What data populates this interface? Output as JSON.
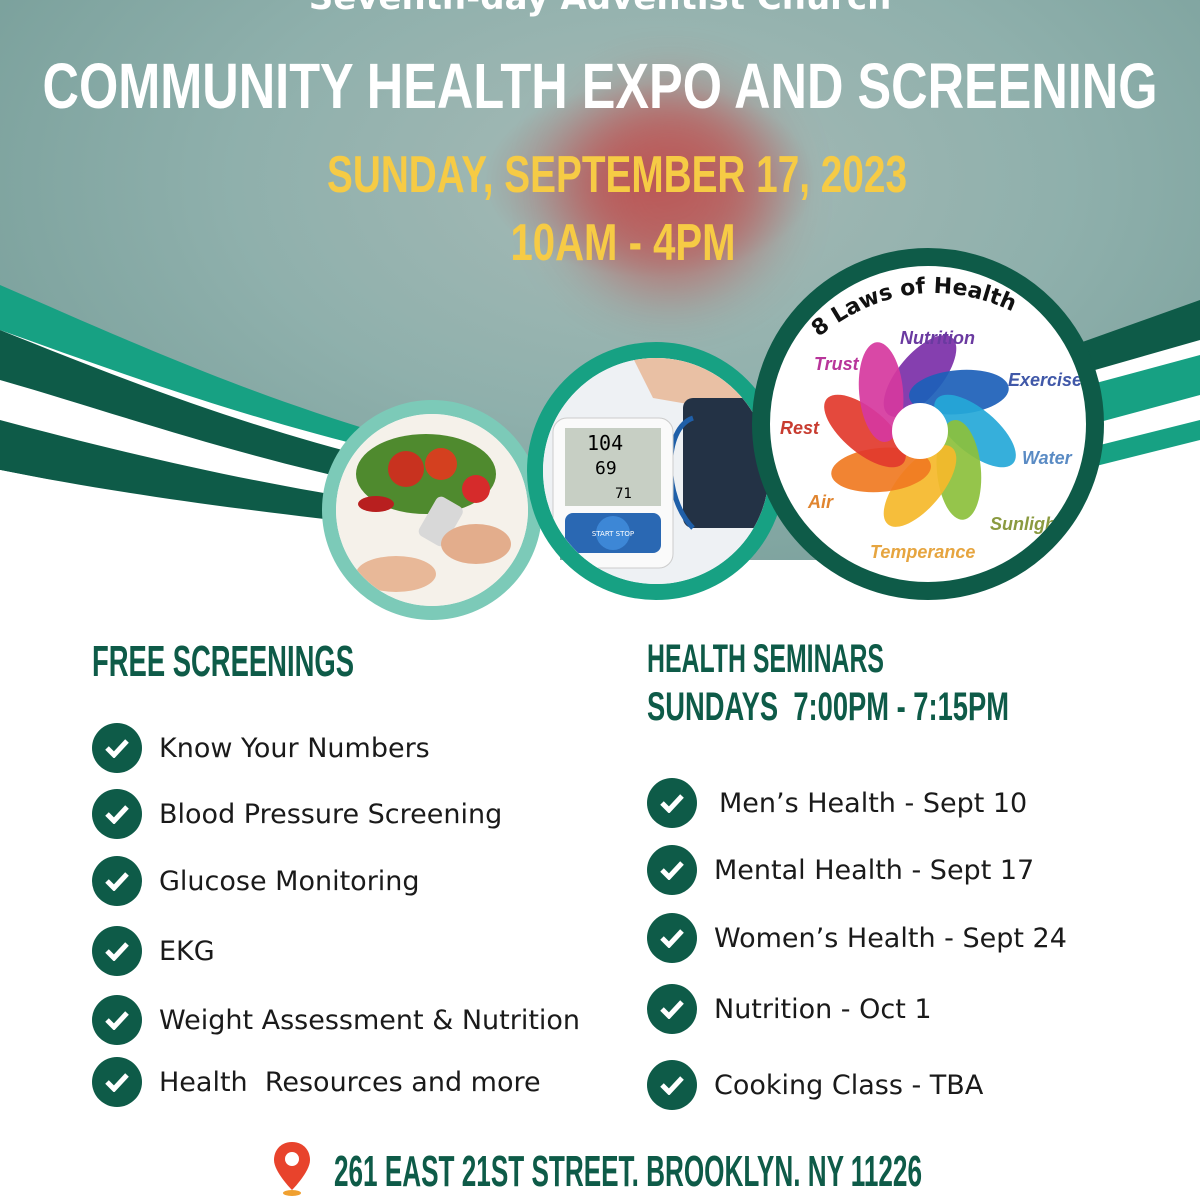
{
  "header": {
    "church": "Seventh-day Adventist Church",
    "title": "COMMUNITY HEALTH EXPO AND SCREENING",
    "date": "SUNDAY, SEPTEMBER 17, 2023",
    "time": "10AM - 4PM"
  },
  "laws": {
    "title": "8 Laws of Health",
    "items": [
      "Nutrition",
      "Exercise",
      "Water",
      "Sunlight",
      "Temperance",
      "Air",
      "Rest",
      "Trust"
    ]
  },
  "bp_monitor": {
    "readings": [
      "104",
      "69",
      "71"
    ],
    "button": "START STOP"
  },
  "screenings": {
    "heading": "FREE SCREENINGS",
    "items": [
      "Know Your Numbers",
      "Blood Pressure Screening",
      "Glucose Monitoring",
      "EKG",
      "Weight Assessment & Nutrition",
      "Health  Resources and more"
    ]
  },
  "seminars": {
    "heading": "HEALTH SEMINARS",
    "schedule": "SUNDAYS  7:00PM - 7:15PM",
    "items": [
      "Men’s Health - Sept 10",
      "Mental Health - Sept 17",
      "Women’s Health - Sept 24",
      "Nutrition - Oct 1",
      "Cooking Class - TBA"
    ]
  },
  "address": "261 EAST 21ST STREET. BROOKLYN. NY 11226",
  "colors": {
    "dark_green": "#0e5b48",
    "teal": "#17a183",
    "yellow": "#f6cb45"
  }
}
